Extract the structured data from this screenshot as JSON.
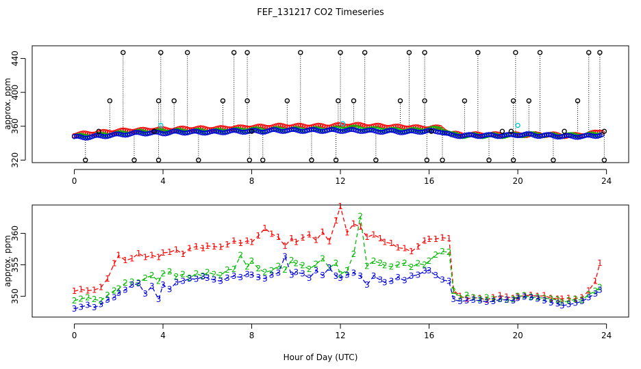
{
  "figure": {
    "title": "FEF_131217  CO2 Timeseries",
    "xlabel": "Hour of Day (UTC)"
  },
  "colors": {
    "axis": "#000000",
    "series1": "#ff0000",
    "series2": "#00bb00",
    "series3": "#0000dd",
    "outlier": "#000000",
    "cyan_points": "#00c8d8",
    "dotted_lines": "#000000"
  },
  "chart_data": [
    {
      "type": "scatter",
      "panel": "top",
      "title": "FEF_131217  CO2 Timeseries",
      "xlabel": "",
      "ylabel": "approx. ppm",
      "xlim": [
        -1.9,
        25.0
      ],
      "ylim": [
        317,
        455
      ],
      "xticks": [
        0,
        4,
        8,
        12,
        16,
        20,
        24
      ],
      "yticks": [
        320,
        360,
        400,
        440
      ],
      "grid": false,
      "marker": "open-circle",
      "series_profiles": [
        {
          "name": "1",
          "color": "#ff0000",
          "x": [
            0,
            0.5,
            1,
            1.5,
            2,
            2.5,
            3,
            3.5,
            4,
            4.5,
            5,
            5.5,
            6,
            6.5,
            7,
            7.5,
            8,
            8.5,
            9,
            9.5,
            10,
            10.5,
            11,
            11.5,
            12,
            12.5,
            13,
            13.5,
            14,
            14.5,
            15,
            15.5,
            16,
            16.5,
            17,
            17.5,
            18,
            18.5,
            19,
            19.5,
            20,
            20.5,
            21,
            21.5,
            22,
            22.5,
            23,
            23.5,
            23.8
          ],
          "y": [
            350,
            351,
            352,
            353,
            354,
            355,
            355,
            356,
            356,
            356,
            357,
            357,
            357,
            357,
            358,
            358,
            359,
            359,
            360,
            360,
            360,
            360,
            360,
            360,
            361,
            361,
            361,
            360,
            360,
            359,
            359,
            358,
            358,
            358,
            351,
            350,
            350,
            350,
            350,
            350,
            350,
            350,
            350,
            350,
            349,
            349,
            350,
            352,
            354
          ]
        },
        {
          "name": "2",
          "color": "#00bb00",
          "x": [
            0,
            0.5,
            1,
            1.5,
            2,
            2.5,
            3,
            3.5,
            4,
            4.5,
            5,
            5.5,
            6,
            6.5,
            7,
            7.5,
            8,
            8.5,
            9,
            9.5,
            10,
            10.5,
            11,
            11.5,
            12,
            12.5,
            13,
            13.5,
            14,
            14.5,
            15,
            15.5,
            16,
            16.5,
            17,
            17.5,
            18,
            18.5,
            19,
            19.5,
            20,
            20.5,
            21,
            21.5,
            22,
            22.5,
            23,
            23.5,
            23.8
          ],
          "y": [
            348,
            348,
            349,
            350,
            351,
            352,
            353,
            353,
            354,
            354,
            354,
            354,
            354,
            354,
            355,
            355,
            356,
            355,
            356,
            356,
            356,
            356,
            356,
            356,
            357,
            358,
            357,
            356,
            356,
            355,
            355,
            355,
            356,
            357,
            350,
            349,
            349,
            349,
            349,
            349,
            350,
            350,
            350,
            349,
            349,
            349,
            349,
            350,
            351
          ]
        },
        {
          "name": "3",
          "color": "#0000dd",
          "x": [
            0,
            0.5,
            1,
            1.5,
            2,
            2.5,
            3,
            3.5,
            4,
            4.5,
            5,
            5.5,
            6,
            6.5,
            7,
            7.5,
            8,
            8.5,
            9,
            9.5,
            10,
            10.5,
            11,
            11.5,
            12,
            12.5,
            13,
            13.5,
            14,
            14.5,
            15,
            15.5,
            16,
            16.5,
            17,
            17.5,
            18,
            18.5,
            19,
            19.5,
            20,
            20.5,
            21,
            21.5,
            22,
            22.5,
            23,
            23.5,
            23.8
          ],
          "y": [
            347,
            347,
            348,
            349,
            350,
            351,
            352,
            352,
            352,
            353,
            353,
            353,
            353,
            353,
            354,
            354,
            354,
            354,
            355,
            355,
            355,
            355,
            355,
            355,
            355,
            355,
            355,
            354,
            354,
            354,
            353,
            354,
            354,
            354,
            349,
            349,
            349,
            349,
            349,
            349,
            350,
            350,
            349,
            349,
            348,
            348,
            348,
            349,
            350
          ]
        }
      ],
      "outlier_points": {
        "high_440": [
          2.2,
          3.9,
          5.1,
          7.2,
          7.8,
          10.2,
          12.0,
          13.1,
          15.1,
          15.8,
          18.2,
          19.9,
          21.0,
          23.2,
          23.7
        ],
        "mid_390": [
          1.6,
          3.8,
          4.5,
          6.7,
          7.8,
          9.6,
          11.9,
          12.6,
          14.7,
          15.8,
          17.6,
          19.8,
          20.5,
          22.7
        ],
        "low_320": [
          0.5,
          2.7,
          3.8,
          5.6,
          7.9,
          8.5,
          10.7,
          11.8,
          13.6,
          15.9,
          16.6,
          18.7,
          19.8,
          21.6,
          23.9
        ],
        "base_354": [
          1.1,
          3.6,
          8.0,
          16.1,
          19.3,
          19.7,
          22.1,
          23.9
        ]
      },
      "cyan_points": {
        "x": [
          3.9,
          12.1,
          20.0
        ],
        "y": [
          361,
          363,
          361
        ]
      }
    },
    {
      "type": "line",
      "panel": "bottom",
      "xlabel": "Hour of Day (UTC)",
      "ylabel": "approx. ppm",
      "xlim": [
        -1.9,
        25.0
      ],
      "ylim": [
        346.7,
        364.5
      ],
      "xticks": [
        0,
        4,
        8,
        12,
        16,
        20,
        24
      ],
      "yticks": [
        350,
        355,
        360
      ],
      "grid": false,
      "line_style": "dashed, points drawn as series-number characters",
      "series": [
        {
          "name": "1",
          "color": "#ff0000",
          "x": [
            0,
            0.3,
            0.6,
            0.9,
            1.2,
            1.5,
            1.8,
            2.0,
            2.3,
            2.6,
            2.9,
            3.2,
            3.5,
            3.8,
            4.0,
            4.3,
            4.6,
            4.9,
            5.2,
            5.5,
            5.8,
            6.0,
            6.3,
            6.6,
            6.9,
            7.2,
            7.5,
            7.8,
            8.0,
            8.3,
            8.6,
            8.9,
            9.2,
            9.5,
            9.8,
            10.0,
            10.3,
            10.6,
            10.9,
            11.2,
            11.5,
            11.8,
            12.0,
            12.3,
            12.6,
            12.9,
            13.2,
            13.5,
            13.8,
            14.0,
            14.3,
            14.6,
            14.9,
            15.2,
            15.5,
            15.8,
            16.0,
            16.3,
            16.6,
            16.9,
            17.1,
            17.4,
            17.7,
            18.0,
            18.3,
            18.6,
            18.9,
            19.2,
            19.5,
            19.8,
            20.0,
            20.3,
            20.6,
            20.9,
            21.2,
            21.5,
            21.8,
            22.0,
            22.3,
            22.6,
            22.9,
            23.2,
            23.5,
            23.7
          ],
          "y": [
            350.8,
            351.1,
            350.9,
            351.0,
            351.4,
            352.8,
            355.2,
            356.5,
            355.7,
            356.0,
            356.8,
            356.2,
            356.5,
            356.2,
            356.9,
            357.0,
            357.4,
            356.7,
            357.6,
            357.9,
            357.6,
            358.0,
            357.9,
            357.8,
            358.2,
            358.8,
            358.4,
            358.8,
            358.6,
            359.6,
            360.8,
            359.9,
            359.4,
            358.0,
            359.2,
            358.6,
            359.3,
            359.8,
            358.9,
            360.2,
            358.7,
            362.0,
            364.3,
            360.1,
            361.5,
            361.0,
            359.4,
            359.8,
            359.2,
            358.6,
            358.4,
            357.7,
            357.6,
            357.1,
            357.9,
            358.8,
            359.1,
            359.1,
            359.3,
            359.2,
            351.0,
            350.0,
            349.6,
            349.8,
            349.7,
            349.4,
            349.8,
            350.1,
            349.9,
            349.7,
            349.9,
            350.1,
            350.2,
            350.0,
            350.1,
            349.7,
            349.6,
            349.6,
            349.7,
            349.6,
            349.8,
            350.9,
            352.4,
            355.3
          ]
        },
        {
          "name": "2",
          "color": "#00bb00",
          "x": [
            0,
            0.3,
            0.6,
            0.9,
            1.2,
            1.5,
            1.8,
            2.0,
            2.3,
            2.6,
            2.9,
            3.2,
            3.5,
            3.8,
            4.0,
            4.3,
            4.6,
            4.9,
            5.2,
            5.5,
            5.8,
            6.0,
            6.3,
            6.6,
            6.9,
            7.2,
            7.5,
            7.8,
            8.0,
            8.3,
            8.6,
            8.9,
            9.2,
            9.5,
            9.8,
            10.0,
            10.3,
            10.6,
            10.9,
            11.2,
            11.5,
            11.8,
            12.0,
            12.3,
            12.6,
            12.9,
            13.2,
            13.5,
            13.8,
            14.0,
            14.3,
            14.6,
            14.9,
            15.2,
            15.5,
            15.8,
            16.0,
            16.3,
            16.6,
            16.9,
            17.1,
            17.4,
            17.7,
            18.0,
            18.3,
            18.6,
            18.9,
            19.2,
            19.5,
            19.8,
            20.0,
            20.3,
            20.6,
            20.9,
            21.2,
            21.5,
            21.8,
            22.0,
            22.3,
            22.6,
            22.9,
            23.2,
            23.5,
            23.7
          ],
          "y": [
            349.3,
            349.6,
            349.8,
            349.5,
            349.3,
            350.2,
            350.9,
            351.2,
            352.1,
            352.3,
            352.1,
            352.9,
            353.3,
            352.4,
            353.6,
            353.9,
            353.1,
            353.5,
            352.9,
            353.6,
            353.2,
            353.8,
            353.5,
            353.3,
            354.2,
            354.3,
            356.5,
            354.7,
            355.6,
            354.4,
            353.8,
            354.1,
            354.8,
            354.2,
            355.7,
            355.2,
            354.9,
            354.3,
            355.1,
            356.0,
            354.5,
            355.3,
            353.5,
            354.1,
            356.7,
            362.7,
            354.8,
            355.6,
            355.3,
            354.9,
            354.7,
            355.0,
            355.3,
            354.6,
            355.2,
            355.0,
            355.6,
            356.6,
            357.1,
            357.0,
            350.8,
            349.7,
            350.2,
            349.8,
            349.6,
            349.8,
            349.5,
            349.6,
            349.4,
            349.5,
            350.0,
            350.1,
            349.9,
            349.8,
            349.7,
            349.6,
            349.4,
            349.0,
            349.3,
            349.5,
            349.4,
            350.3,
            350.8,
            351.4
          ]
        },
        {
          "name": "3",
          "color": "#0000dd",
          "x": [
            0,
            0.3,
            0.6,
            0.9,
            1.2,
            1.5,
            1.8,
            2.0,
            2.3,
            2.6,
            2.9,
            3.2,
            3.5,
            3.8,
            4.0,
            4.3,
            4.6,
            4.9,
            5.2,
            5.5,
            5.8,
            6.0,
            6.3,
            6.6,
            6.9,
            7.2,
            7.5,
            7.8,
            8.0,
            8.3,
            8.6,
            8.9,
            9.2,
            9.5,
            9.8,
            10.0,
            10.3,
            10.6,
            10.9,
            11.2,
            11.5,
            11.8,
            12.0,
            12.3,
            12.6,
            12.9,
            13.2,
            13.5,
            13.8,
            14.0,
            14.3,
            14.6,
            14.9,
            15.2,
            15.5,
            15.8,
            16.0,
            16.3,
            16.6,
            16.9,
            17.1,
            17.4,
            17.7,
            18.0,
            18.3,
            18.6,
            18.9,
            19.2,
            19.5,
            19.8,
            20.0,
            20.3,
            20.6,
            20.9,
            21.2,
            21.5,
            21.8,
            22.0,
            22.3,
            22.6,
            22.9,
            23.2,
            23.5,
            23.7
          ],
          "y": [
            348.0,
            348.3,
            348.6,
            348.2,
            348.7,
            349.4,
            349.8,
            350.5,
            351.0,
            351.8,
            352.0,
            350.4,
            351.6,
            349.5,
            351.8,
            351.1,
            352.2,
            352.4,
            352.8,
            352.7,
            353.1,
            352.9,
            352.6,
            352.4,
            352.9,
            353.2,
            353.0,
            353.5,
            353.4,
            353.0,
            352.8,
            353.4,
            353.7,
            356.3,
            353.4,
            353.8,
            353.6,
            352.9,
            354.1,
            353.3,
            354.5,
            353.2,
            352.9,
            353.4,
            353.7,
            353.2,
            351.8,
            353.2,
            352.6,
            352.2,
            352.4,
            353.0,
            352.5,
            353.2,
            353.4,
            354.0,
            354.1,
            353.3,
            352.6,
            352.4,
            349.5,
            349.2,
            349.3,
            349.4,
            349.3,
            349.1,
            349.2,
            349.5,
            349.4,
            349.3,
            349.7,
            349.9,
            349.8,
            349.6,
            349.3,
            349.0,
            348.8,
            348.5,
            348.7,
            348.9,
            349.2,
            349.8,
            350.4,
            351.0
          ]
        }
      ]
    }
  ]
}
